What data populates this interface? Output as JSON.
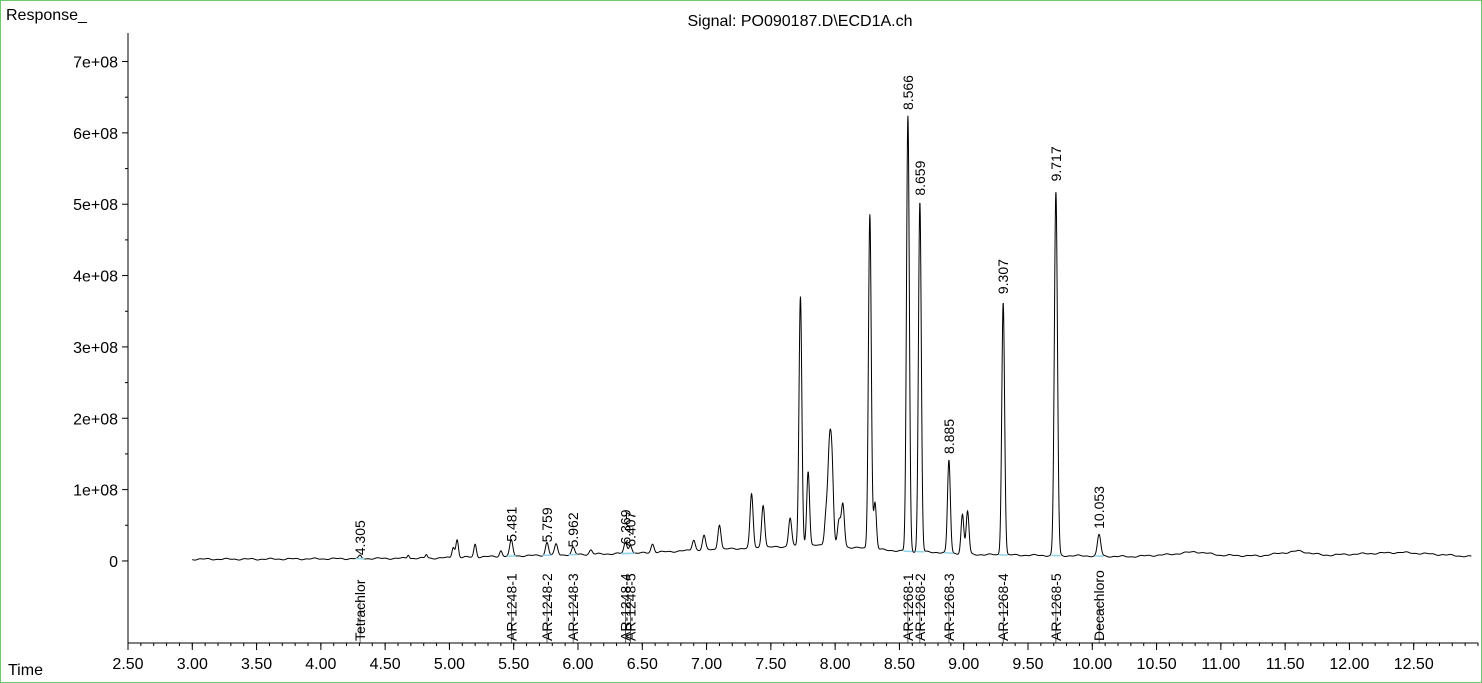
{
  "chart_data": {
    "type": "line",
    "title": "Signal: PO090187.D\\ECD1A.ch",
    "ylabel": "Response_",
    "xlabel": "Time",
    "xlim": [
      2.5,
      13.0
    ],
    "ylim": [
      -115000000,
      740000000
    ],
    "x_ticks": [
      "2.50",
      "3.00",
      "3.50",
      "4.00",
      "4.50",
      "5.00",
      "5.50",
      "6.00",
      "6.50",
      "7.00",
      "7.50",
      "8.00",
      "8.50",
      "9.00",
      "9.50",
      "10.00",
      "10.50",
      "11.00",
      "11.50",
      "12.00",
      "12.50"
    ],
    "y_ticks": [
      "0",
      "1e+08",
      "2e+08",
      "3e+08",
      "4e+08",
      "5e+08",
      "6e+08",
      "7e+08"
    ],
    "baseline_points": [
      [
        3.0,
        2500000
      ],
      [
        3.5,
        2500000
      ],
      [
        4.0,
        3000000
      ],
      [
        4.5,
        3500000
      ],
      [
        4.9,
        4000000
      ],
      [
        5.5,
        7000000
      ],
      [
        6.0,
        9000000
      ],
      [
        6.5,
        11000000
      ],
      [
        6.8,
        14000000
      ],
      [
        7.2,
        17000000
      ],
      [
        7.6,
        20000000
      ],
      [
        7.9,
        22000000
      ],
      [
        8.2,
        18000000
      ],
      [
        8.5,
        14000000
      ],
      [
        8.8,
        12000000
      ],
      [
        9.1,
        9000000
      ],
      [
        9.5,
        8000000
      ],
      [
        10.0,
        7000000
      ],
      [
        10.3,
        6000000
      ],
      [
        10.6,
        9000000
      ],
      [
        10.8,
        13000000
      ],
      [
        11.0,
        8000000
      ],
      [
        11.3,
        7000000
      ],
      [
        11.6,
        14000000
      ],
      [
        11.8,
        8000000
      ],
      [
        12.1,
        10000000
      ],
      [
        12.4,
        12000000
      ],
      [
        12.7,
        9000000
      ],
      [
        12.95,
        6000000
      ]
    ],
    "peaks": [
      [
        4.305,
        4000000,
        0.01
      ],
      [
        4.68,
        5000000,
        0.008
      ],
      [
        4.82,
        5000000,
        0.008
      ],
      [
        5.03,
        15000000,
        0.01
      ],
      [
        5.06,
        25000000,
        0.01
      ],
      [
        5.2,
        18000000,
        0.01
      ],
      [
        5.4,
        8000000,
        0.01
      ],
      [
        5.481,
        22000000,
        0.012
      ],
      [
        5.759,
        18000000,
        0.012
      ],
      [
        5.83,
        15000000,
        0.012
      ],
      [
        5.962,
        10000000,
        0.012
      ],
      [
        6.1,
        6000000,
        0.012
      ],
      [
        6.369,
        15000000,
        0.012
      ],
      [
        6.407,
        12000000,
        0.012
      ],
      [
        6.58,
        12000000,
        0.012
      ],
      [
        6.9,
        15000000,
        0.012
      ],
      [
        6.98,
        20000000,
        0.012
      ],
      [
        7.1,
        35000000,
        0.012
      ],
      [
        7.35,
        75000000,
        0.012
      ],
      [
        7.44,
        60000000,
        0.012
      ],
      [
        7.65,
        40000000,
        0.012
      ],
      [
        7.73,
        350000000,
        0.011
      ],
      [
        7.79,
        105000000,
        0.011
      ],
      [
        7.93,
        45000000,
        0.012
      ],
      [
        7.955,
        120000000,
        0.012
      ],
      [
        7.975,
        110000000,
        0.012
      ],
      [
        8.03,
        35000000,
        0.012
      ],
      [
        8.06,
        60000000,
        0.012
      ],
      [
        8.27,
        470000000,
        0.011
      ],
      [
        8.31,
        65000000,
        0.011
      ],
      [
        8.566,
        610000000,
        0.011
      ],
      [
        8.659,
        490000000,
        0.011
      ],
      [
        8.885,
        130000000,
        0.011
      ],
      [
        8.99,
        55000000,
        0.011
      ],
      [
        9.03,
        60000000,
        0.011
      ],
      [
        9.307,
        355000000,
        0.011
      ],
      [
        9.717,
        510000000,
        0.012
      ],
      [
        10.053,
        30000000,
        0.013
      ]
    ],
    "rt_labels": [
      {
        "rt": 4.305,
        "text": "4.305",
        "y": 8000000
      },
      {
        "rt": 5.481,
        "text": "5.481",
        "y": 27000000
      },
      {
        "rt": 5.759,
        "text": "5.759",
        "y": 26000000
      },
      {
        "rt": 5.962,
        "text": "5.962",
        "y": 19000000
      },
      {
        "rt": 6.369,
        "text": "6.369",
        "y": 23000000
      },
      {
        "rt": 6.407,
        "text": "6.407",
        "y": 20000000
      },
      {
        "rt": 8.566,
        "text": "8.566",
        "y": 632000000
      },
      {
        "rt": 8.659,
        "text": "8.659",
        "y": 512000000
      },
      {
        "rt": 8.885,
        "text": "8.885",
        "y": 150000000
      },
      {
        "rt": 9.307,
        "text": "9.307",
        "y": 374000000
      },
      {
        "rt": 9.717,
        "text": "9.717",
        "y": 532000000
      },
      {
        "rt": 10.053,
        "text": "10.053",
        "y": 45000000
      }
    ],
    "compound_labels": [
      {
        "rt": 4.305,
        "text": "Tetrachlor"
      },
      {
        "rt": 5.481,
        "text": "AR-1248-1"
      },
      {
        "rt": 5.759,
        "text": "AR-1248-2"
      },
      {
        "rt": 5.962,
        "text": "AR-1248-3"
      },
      {
        "rt": 6.369,
        "text": "AR-1248-4"
      },
      {
        "rt": 6.407,
        "text": "AR-1248-5"
      },
      {
        "rt": 8.566,
        "text": "AR-1268-1"
      },
      {
        "rt": 8.659,
        "text": "AR-1268-2"
      },
      {
        "rt": 8.885,
        "text": "AR-1268-3"
      },
      {
        "rt": 9.307,
        "text": "AR-1268-4"
      },
      {
        "rt": 9.717,
        "text": "AR-1268-5"
      },
      {
        "rt": 10.053,
        "text": "Decachloro"
      }
    ],
    "grid": false,
    "colors": {
      "trace": "#000000",
      "integration": "#8fd3e8",
      "frame": "#6ec86e"
    }
  }
}
